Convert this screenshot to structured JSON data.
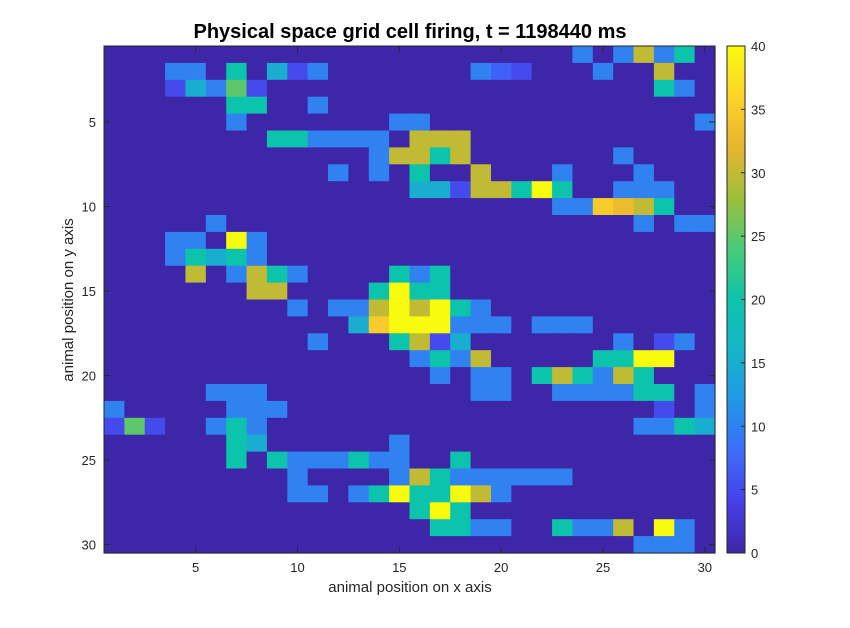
{
  "chart_data": {
    "type": "heatmap",
    "title": "Physical space grid cell firing, t = 1198440 ms",
    "xlabel": "animal position on x axis",
    "ylabel": "animal position on y axis",
    "xlim": [
      0.5,
      30.5
    ],
    "ylim": [
      0.5,
      30.5
    ],
    "y_reversed": true,
    "xticks": [
      5,
      10,
      15,
      20,
      25,
      30
    ],
    "yticks": [
      5,
      10,
      15,
      20,
      25,
      30
    ],
    "grid": false,
    "colormap": "parula",
    "colorbar": {
      "position": "right",
      "clim": [
        0,
        40
      ],
      "ticks": [
        0,
        5,
        10,
        15,
        20,
        25,
        30,
        35,
        40
      ]
    },
    "values": [
      [
        0,
        0,
        0,
        0,
        0,
        0,
        0,
        0,
        0,
        0,
        0,
        0,
        0,
        0,
        0,
        0,
        0,
        0,
        0,
        0,
        0,
        0,
        0,
        10,
        0,
        10,
        30,
        10,
        20,
        0
      ],
      [
        0,
        0,
        0,
        10,
        10,
        0,
        20,
        0,
        15,
        5,
        10,
        0,
        0,
        0,
        0,
        0,
        0,
        0,
        10,
        7,
        5,
        0,
        0,
        0,
        10,
        0,
        0,
        30,
        0,
        0
      ],
      [
        0,
        0,
        0,
        5,
        15,
        10,
        25,
        5,
        0,
        0,
        0,
        0,
        0,
        0,
        0,
        0,
        0,
        0,
        0,
        0,
        0,
        0,
        0,
        0,
        0,
        0,
        0,
        20,
        10,
        0
      ],
      [
        0,
        0,
        0,
        0,
        0,
        0,
        20,
        20,
        0,
        0,
        10,
        0,
        0,
        0,
        0,
        0,
        0,
        0,
        0,
        0,
        0,
        0,
        0,
        0,
        0,
        0,
        0,
        0,
        0,
        0
      ],
      [
        0,
        0,
        0,
        0,
        0,
        0,
        10,
        0,
        0,
        0,
        0,
        0,
        0,
        0,
        10,
        10,
        0,
        0,
        0,
        0,
        0,
        0,
        0,
        0,
        0,
        0,
        0,
        0,
        0,
        10
      ],
      [
        0,
        0,
        0,
        0,
        0,
        0,
        0,
        0,
        20,
        20,
        10,
        10,
        10,
        10,
        0,
        30,
        30,
        30,
        0,
        0,
        0,
        0,
        0,
        0,
        0,
        0,
        0,
        0,
        0,
        0
      ],
      [
        0,
        0,
        0,
        0,
        0,
        0,
        0,
        0,
        0,
        0,
        0,
        0,
        0,
        10,
        30,
        30,
        20,
        30,
        0,
        0,
        0,
        0,
        0,
        0,
        0,
        10,
        0,
        0,
        0,
        0
      ],
      [
        0,
        0,
        0,
        0,
        0,
        0,
        0,
        0,
        0,
        0,
        0,
        10,
        0,
        10,
        0,
        20,
        0,
        0,
        30,
        0,
        0,
        0,
        10,
        0,
        0,
        0,
        10,
        0,
        0,
        0
      ],
      [
        0,
        0,
        0,
        0,
        0,
        0,
        0,
        0,
        0,
        0,
        0,
        0,
        0,
        0,
        0,
        15,
        15,
        5,
        30,
        30,
        20,
        40,
        20,
        0,
        0,
        10,
        10,
        10,
        0,
        0
      ],
      [
        0,
        0,
        0,
        0,
        0,
        0,
        0,
        0,
        0,
        0,
        0,
        0,
        0,
        0,
        0,
        0,
        0,
        0,
        0,
        0,
        0,
        0,
        10,
        10,
        35,
        33,
        30,
        20,
        0,
        0
      ],
      [
        0,
        0,
        0,
        0,
        0,
        10,
        0,
        0,
        0,
        0,
        0,
        0,
        0,
        0,
        0,
        0,
        0,
        0,
        0,
        0,
        0,
        0,
        0,
        0,
        0,
        0,
        10,
        0,
        10,
        10
      ],
      [
        0,
        0,
        0,
        10,
        10,
        0,
        40,
        10,
        0,
        0,
        0,
        0,
        0,
        0,
        0,
        0,
        0,
        0,
        0,
        0,
        0,
        0,
        0,
        0,
        0,
        0,
        0,
        0,
        0,
        0
      ],
      [
        0,
        0,
        0,
        10,
        20,
        15,
        20,
        10,
        0,
        0,
        0,
        0,
        0,
        0,
        0,
        0,
        0,
        0,
        0,
        0,
        0,
        0,
        0,
        0,
        0,
        0,
        0,
        0,
        0,
        0
      ],
      [
        0,
        0,
        0,
        0,
        30,
        0,
        10,
        30,
        20,
        10,
        0,
        0,
        0,
        0,
        20,
        10,
        20,
        0,
        0,
        0,
        0,
        0,
        0,
        0,
        0,
        0,
        0,
        0,
        0,
        0
      ],
      [
        0,
        0,
        0,
        0,
        0,
        0,
        0,
        30,
        30,
        0,
        0,
        0,
        0,
        20,
        40,
        20,
        20,
        0,
        0,
        0,
        0,
        0,
        0,
        0,
        0,
        0,
        0,
        0,
        0,
        0
      ],
      [
        0,
        0,
        0,
        0,
        0,
        0,
        0,
        0,
        0,
        10,
        0,
        10,
        10,
        30,
        40,
        30,
        40,
        20,
        10,
        0,
        0,
        0,
        0,
        0,
        0,
        0,
        0,
        0,
        0,
        0
      ],
      [
        0,
        0,
        0,
        0,
        0,
        0,
        0,
        0,
        0,
        0,
        0,
        0,
        15,
        35,
        40,
        40,
        40,
        10,
        10,
        10,
        0,
        10,
        10,
        10,
        0,
        0,
        0,
        0,
        0,
        0
      ],
      [
        0,
        0,
        0,
        0,
        0,
        0,
        0,
        0,
        0,
        0,
        10,
        0,
        0,
        0,
        20,
        30,
        5,
        15,
        0,
        0,
        0,
        0,
        0,
        0,
        0,
        10,
        0,
        5,
        10,
        0
      ],
      [
        0,
        0,
        0,
        0,
        0,
        0,
        0,
        0,
        0,
        0,
        0,
        0,
        0,
        0,
        0,
        10,
        20,
        10,
        30,
        0,
        0,
        0,
        0,
        0,
        20,
        20,
        40,
        40,
        0,
        0
      ],
      [
        0,
        0,
        0,
        0,
        0,
        0,
        0,
        0,
        0,
        0,
        0,
        0,
        0,
        0,
        0,
        0,
        10,
        0,
        10,
        10,
        0,
        20,
        30,
        20,
        10,
        30,
        20,
        0,
        0,
        0
      ],
      [
        0,
        0,
        0,
        0,
        0,
        10,
        10,
        10,
        0,
        0,
        0,
        0,
        0,
        0,
        0,
        0,
        0,
        0,
        10,
        10,
        0,
        0,
        10,
        10,
        10,
        10,
        20,
        20,
        0,
        10
      ],
      [
        10,
        0,
        0,
        0,
        0,
        0,
        10,
        10,
        10,
        0,
        0,
        0,
        0,
        0,
        0,
        0,
        0,
        0,
        0,
        0,
        0,
        0,
        0,
        0,
        0,
        0,
        0,
        5,
        0,
        10
      ],
      [
        5,
        25,
        5,
        0,
        0,
        10,
        20,
        10,
        0,
        0,
        0,
        0,
        0,
        0,
        0,
        0,
        0,
        0,
        0,
        0,
        0,
        0,
        0,
        0,
        0,
        0,
        10,
        10,
        20,
        15
      ],
      [
        0,
        0,
        0,
        0,
        0,
        0,
        20,
        15,
        0,
        0,
        0,
        0,
        0,
        0,
        10,
        0,
        0,
        0,
        0,
        0,
        0,
        0,
        0,
        0,
        0,
        0,
        0,
        0,
        0,
        0
      ],
      [
        0,
        0,
        0,
        0,
        0,
        0,
        20,
        0,
        20,
        10,
        10,
        10,
        20,
        10,
        10,
        0,
        0,
        20,
        0,
        0,
        0,
        0,
        0,
        0,
        0,
        0,
        0,
        0,
        0,
        0
      ],
      [
        0,
        0,
        0,
        0,
        0,
        0,
        0,
        0,
        0,
        10,
        0,
        0,
        0,
        0,
        10,
        30,
        20,
        10,
        10,
        10,
        10,
        10,
        10,
        0,
        0,
        0,
        0,
        0,
        0,
        0
      ],
      [
        0,
        0,
        0,
        0,
        0,
        0,
        0,
        0,
        0,
        10,
        10,
        0,
        10,
        20,
        40,
        20,
        20,
        40,
        30,
        10,
        0,
        0,
        0,
        0,
        0,
        0,
        0,
        0,
        0,
        0
      ],
      [
        0,
        0,
        0,
        0,
        0,
        0,
        0,
        0,
        0,
        0,
        0,
        0,
        0,
        0,
        0,
        20,
        40,
        20,
        0,
        0,
        0,
        0,
        0,
        0,
        0,
        0,
        0,
        0,
        0,
        0
      ],
      [
        0,
        0,
        0,
        0,
        0,
        0,
        0,
        0,
        0,
        0,
        0,
        0,
        0,
        0,
        0,
        0,
        20,
        20,
        10,
        10,
        0,
        0,
        20,
        10,
        10,
        30,
        0,
        40,
        10,
        0
      ],
      [
        0,
        0,
        0,
        0,
        0,
        0,
        0,
        0,
        0,
        0,
        0,
        0,
        0,
        0,
        0,
        0,
        0,
        0,
        0,
        0,
        0,
        0,
        0,
        0,
        0,
        0,
        10,
        10,
        10,
        0
      ]
    ]
  }
}
